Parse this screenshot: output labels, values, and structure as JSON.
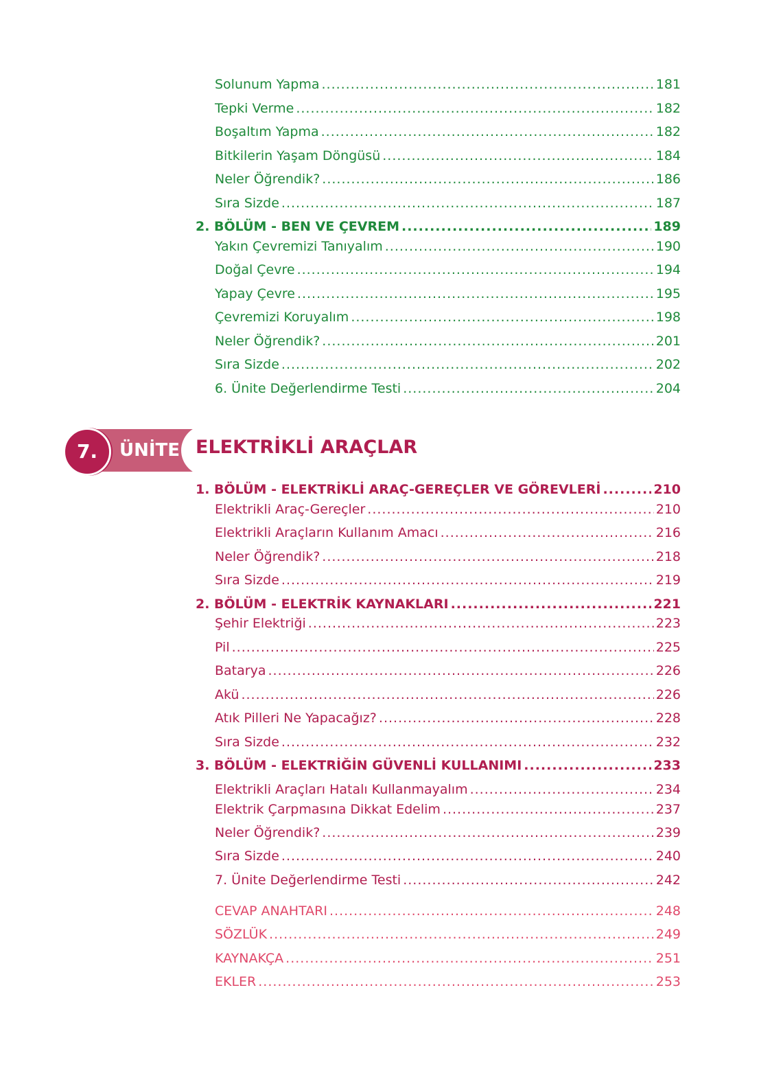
{
  "colors": {
    "green": "#1f8a3b",
    "unit_red": "#b01e50",
    "badge": "#c85c78",
    "appendix_pink": "#e0486a"
  },
  "unit": {
    "number": "7.",
    "label": "ÜNİTE",
    "title": "ELEKTRİKLİ ARAÇLAR"
  },
  "entries": [
    {
      "title": "Solunum Yapma",
      "page": "181",
      "level": "sub",
      "color": "green"
    },
    {
      "title": "Tepki Verme",
      "page": "182",
      "level": "sub",
      "color": "green"
    },
    {
      "title": "Boşaltım Yapma",
      "page": "182",
      "level": "sub",
      "color": "green"
    },
    {
      "title": "Bitkilerin Yaşam Döngüsü",
      "page": "184",
      "level": "sub",
      "color": "green"
    },
    {
      "title": "Neler Öğrendik?",
      "page": "186",
      "level": "sub",
      "color": "green"
    },
    {
      "title": "Sıra Sizde",
      "page": "187",
      "level": "sub",
      "color": "green"
    },
    {
      "title": "2. BÖLÜM - BEN VE ÇEVREM",
      "page": "189",
      "level": "sec",
      "color": "green"
    },
    {
      "title": "Yakın Çevremizi Tanıyalım",
      "page": "190",
      "level": "sub",
      "color": "green"
    },
    {
      "title": "Doğal Çevre",
      "page": "194",
      "level": "sub",
      "color": "green"
    },
    {
      "title": "Yapay Çevre",
      "page": "195",
      "level": "sub",
      "color": "green"
    },
    {
      "title": "Çevremizi Koruyalım",
      "page": "198",
      "level": "sub",
      "color": "green"
    },
    {
      "title": "Neler Öğrendik?",
      "page": "201",
      "level": "sub",
      "color": "green"
    },
    {
      "title": "Sıra Sizde",
      "page": "202",
      "level": "sub",
      "color": "green"
    },
    {
      "title": "6. Ünite Değerlendirme Testi",
      "page": "204",
      "level": "sub",
      "color": "green"
    },
    {
      "title": "1. BÖLÜM - ELEKTRİKLİ ARAÇ-GEREÇLER VE GÖREVLERİ",
      "page": "210",
      "level": "sec",
      "color": "red"
    },
    {
      "title": "Elektrikli Araç-Gereçler",
      "page": "210",
      "level": "sub",
      "color": "red"
    },
    {
      "title": "Elektrikli Araçların Kullanım Amacı",
      "page": "216",
      "level": "sub",
      "color": "red"
    },
    {
      "title": "Neler Öğrendik?",
      "page": "218",
      "level": "sub",
      "color": "red"
    },
    {
      "title": "Sıra Sizde",
      "page": "219",
      "level": "sub",
      "color": "red"
    },
    {
      "title": "2. BÖLÜM - ELEKTRİK KAYNAKLARI",
      "page": "221",
      "level": "sec",
      "color": "red"
    },
    {
      "title": "Şehir Elektriği",
      "page": "223",
      "level": "sub",
      "color": "red"
    },
    {
      "title": "Pil",
      "page": "225",
      "level": "sub",
      "color": "red"
    },
    {
      "title": "Batarya",
      "page": "226",
      "level": "sub",
      "color": "red"
    },
    {
      "title": "Akü",
      "page": "226",
      "level": "sub",
      "color": "red"
    },
    {
      "title": "Atık Pilleri Ne Yapacağız?",
      "page": "228",
      "level": "sub",
      "color": "red"
    },
    {
      "title": "Sıra Sizde",
      "page": "232",
      "level": "sub",
      "color": "red"
    },
    {
      "title": "3. BÖLÜM - ELEKTRİĞİN GÜVENLİ KULLANIMI",
      "page": "233",
      "level": "sec",
      "color": "red"
    },
    {
      "title": "Elektrikli Araçları Hatalı Kullanmayalım",
      "page": "234",
      "level": "sub",
      "color": "red"
    },
    {
      "title": "Elektrik Çarpmasına Dikkat Edelim",
      "page": "237",
      "level": "sub",
      "color": "red"
    },
    {
      "title": "Neler Öğrendik?",
      "page": "239",
      "level": "sub",
      "color": "red"
    },
    {
      "title": "Sıra Sizde",
      "page": "240",
      "level": "sub",
      "color": "red"
    },
    {
      "title": "7. Ünite Değerlendirme Testi",
      "page": "242",
      "level": "sub",
      "color": "red"
    },
    {
      "title": "CEVAP ANAHTARI",
      "page": "248",
      "level": "app",
      "color": "pink"
    },
    {
      "title": "SÖZLÜK",
      "page": "249",
      "level": "app",
      "color": "pink"
    },
    {
      "title": "KAYNAKÇA",
      "page": "251",
      "level": "app",
      "color": "pink"
    },
    {
      "title": "EKLER",
      "page": "253",
      "level": "app",
      "color": "pink"
    }
  ]
}
